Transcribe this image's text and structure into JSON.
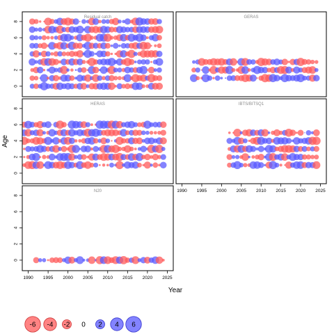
{
  "chart_data": {
    "type": "scatter",
    "xlabel": "Year",
    "ylabel": "Age",
    "xlim": [
      1988.5,
      2026.5
    ],
    "ylim": [
      -1.3,
      9.2
    ],
    "x_ticks": [
      1990,
      1995,
      2000,
      2005,
      2010,
      2015,
      2020,
      2025
    ],
    "y_ticks": [
      0,
      2,
      4,
      6,
      8
    ],
    "colors": {
      "negative": "#ff5a5a",
      "positive": "#5a5aff"
    },
    "legend": {
      "values": [
        -6,
        -4,
        -2,
        0,
        2,
        4,
        6
      ],
      "labels": [
        "-6",
        "-4",
        "-2",
        "0",
        "2",
        "4",
        "6"
      ]
    },
    "panels": [
      {
        "title": "Residual catch",
        "years": [
          1991,
          2023
        ],
        "ages": [
          0,
          8
        ]
      },
      {
        "title": "GERAS",
        "years": [
          1993,
          2024
        ],
        "ages": [
          1,
          3
        ]
      },
      {
        "title": "HERAS",
        "years": [
          1989,
          2024
        ],
        "ages": [
          1,
          6
        ]
      },
      {
        "title": "IBTS/BITSQ1",
        "years": [
          2002,
          2024
        ],
        "ages": [
          1,
          5
        ]
      },
      {
        "title": "N20",
        "years": [
          1992,
          2024
        ],
        "ages": [
          0,
          0
        ]
      }
    ]
  }
}
